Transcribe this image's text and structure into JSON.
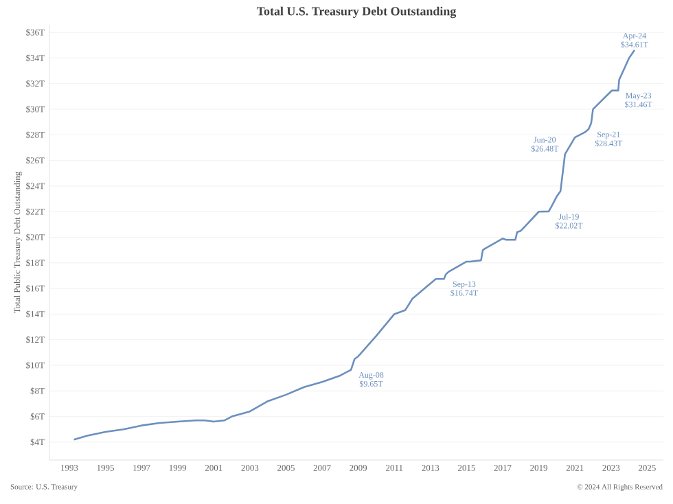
{
  "chart_data": {
    "type": "line",
    "title": "Total U.S. Treasury Debt Outstanding",
    "ylabel": "Total Public Treasury Debt Outstanding",
    "xlim": [
      1991.9,
      2025.9
    ],
    "ylim": [
      2.6,
      36.6
    ],
    "xticks": [
      1993,
      1995,
      1997,
      1999,
      2001,
      2003,
      2005,
      2007,
      2009,
      2011,
      2013,
      2015,
      2017,
      2019,
      2021,
      2023,
      2025
    ],
    "yticks": [
      {
        "value": 4,
        "label": "$4T"
      },
      {
        "value": 6,
        "label": "$6T"
      },
      {
        "value": 8,
        "label": "$8T"
      },
      {
        "value": 10,
        "label": "$10T"
      },
      {
        "value": 12,
        "label": "$12T"
      },
      {
        "value": 14,
        "label": "$14T"
      },
      {
        "value": 16,
        "label": "$16T"
      },
      {
        "value": 18,
        "label": "$18T"
      },
      {
        "value": 20,
        "label": "$20T"
      },
      {
        "value": 22,
        "label": "$22T"
      },
      {
        "value": 24,
        "label": "$24T"
      },
      {
        "value": 26,
        "label": "$26T"
      },
      {
        "value": 28,
        "label": "$28T"
      },
      {
        "value": 30,
        "label": "$30T"
      },
      {
        "value": 32,
        "label": "$32T"
      },
      {
        "value": 34,
        "label": "$34T"
      },
      {
        "value": 36,
        "label": "$36T"
      }
    ],
    "grid": "y",
    "marker": "none",
    "line_style": "solid",
    "series": [
      {
        "color": "#6b8fbe",
        "x": [
          1993.25,
          1994,
          1995,
          1996,
          1997,
          1998,
          1999,
          2000,
          2000.5,
          2001,
          2001.6,
          2002,
          2003,
          2004,
          2005,
          2006,
          2007,
          2008,
          2008.6,
          2008.8,
          2009,
          2010,
          2011,
          2011.6,
          2012,
          2013,
          2013.3,
          2013.75,
          2013.85,
          2014,
          2015,
          2015.2,
          2015.8,
          2015.9,
          2016,
          2017,
          2017.2,
          2017.7,
          2017.8,
          2018,
          2019,
          2019.55,
          2019.7,
          2020,
          2020.2,
          2020.45,
          2021,
          2021.55,
          2021.75,
          2021.9,
          2022,
          2023,
          2023.05,
          2023.4,
          2023.45,
          2024,
          2024.3
        ],
        "values": [
          4.2,
          4.5,
          4.8,
          5.0,
          5.3,
          5.5,
          5.6,
          5.7,
          5.7,
          5.6,
          5.7,
          6.0,
          6.4,
          7.2,
          7.7,
          8.3,
          8.7,
          9.2,
          9.65,
          10.5,
          10.7,
          12.3,
          14.0,
          14.3,
          15.2,
          16.4,
          16.74,
          16.74,
          17.1,
          17.3,
          18.1,
          18.1,
          18.2,
          19.0,
          19.1,
          19.9,
          19.8,
          19.8,
          20.4,
          20.5,
          22.0,
          22.02,
          22.4,
          23.2,
          23.6,
          26.48,
          27.8,
          28.2,
          28.43,
          28.9,
          30.0,
          31.4,
          31.46,
          31.46,
          32.3,
          34.0,
          34.61
        ]
      }
    ],
    "annotations": [
      {
        "text": "Aug-08 $9.65T",
        "x": 2008.6,
        "y": 9.65
      },
      {
        "text": "Sep-13 $16.74T",
        "x": 2013.75,
        "y": 16.74
      },
      {
        "text": "Jul-19 $22.02T",
        "x": 2019.55,
        "y": 22.02
      },
      {
        "text": "Jun-20 $26.48T",
        "x": 2020.45,
        "y": 26.48
      },
      {
        "text": "Sep-21 $28.43T",
        "x": 2021.75,
        "y": 28.43
      },
      {
        "text": "May-23 $31.46T",
        "x": 2023.4,
        "y": 31.46
      },
      {
        "text": "Apr-24 $34.61T",
        "x": 2024.3,
        "y": 34.61
      },
      "Source: U.S. Treasury",
      "© 2024 All Rights Reserved"
    ]
  }
}
